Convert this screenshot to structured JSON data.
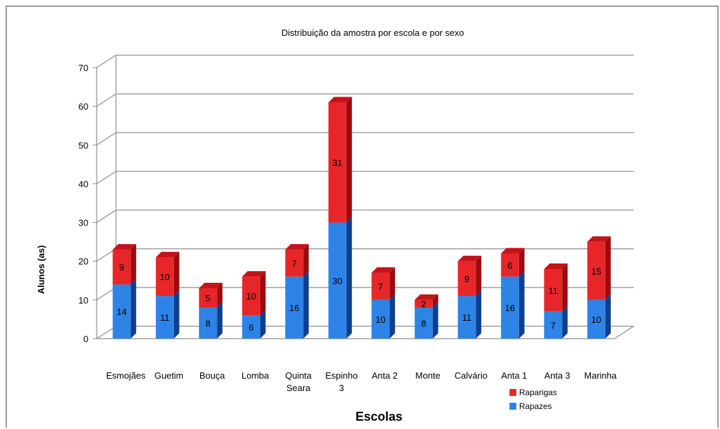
{
  "chart_data": {
    "type": "bar",
    "stacked": true,
    "style": "3d",
    "title": "Distribuição da amostra por escola e por sexo",
    "xlabel": "Escolas",
    "ylabel": "Alunos (as)",
    "ylim": [
      0,
      70
    ],
    "yticks": [
      0,
      10,
      20,
      30,
      40,
      50,
      60,
      70
    ],
    "grid": true,
    "legend_position": "bottom-right",
    "categories": [
      [
        "Esmojães"
      ],
      [
        "Guetim"
      ],
      [
        "Bouça"
      ],
      [
        "Lomba"
      ],
      [
        "Quinta",
        "Seara"
      ],
      [
        "Espinho",
        "3"
      ],
      [
        "Anta 2"
      ],
      [
        "Monte"
      ],
      [
        "Calvário"
      ],
      [
        "Anta 1"
      ],
      [
        "Anta 3"
      ],
      [
        "Marinha"
      ]
    ],
    "series": [
      {
        "name": "Rapazes",
        "color": "#2d83e6",
        "side_color": "#0e3f8f",
        "top_color": "#1e5fb8",
        "values": [
          14,
          11,
          8,
          6,
          16,
          30,
          10,
          8,
          11,
          16,
          7,
          10
        ]
      },
      {
        "name": "Raparigas",
        "color": "#e7262a",
        "side_color": "#9c0a0d",
        "top_color": "#c3141a",
        "values": [
          9,
          10,
          5,
          10,
          7,
          31,
          7,
          2,
          9,
          6,
          11,
          15
        ]
      }
    ],
    "legend_order": [
      "Raparigas",
      "Rapazes"
    ]
  }
}
